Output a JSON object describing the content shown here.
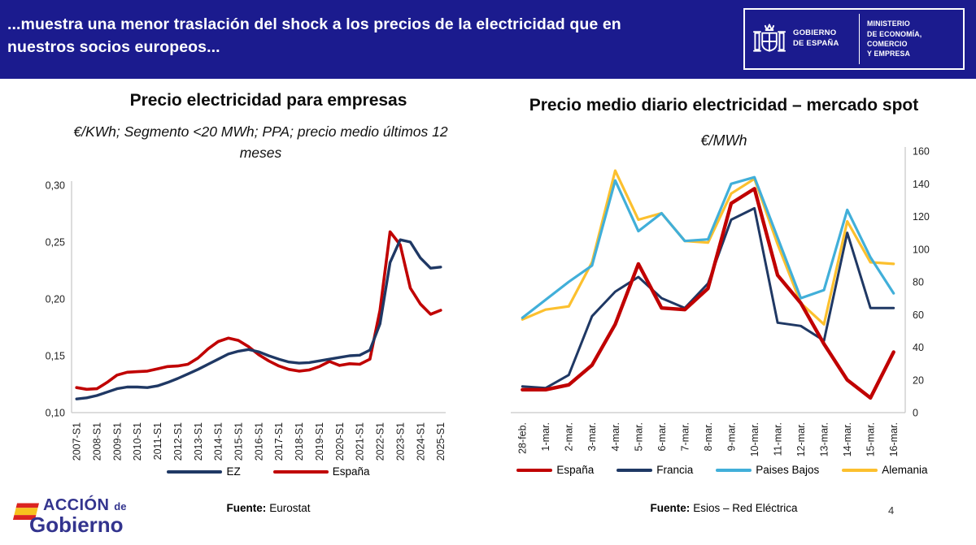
{
  "colors": {
    "header_bg": "#1b1b8e",
    "axis": "#c6c6c6",
    "accion_navy": "#33348E",
    "flag_red": "#DB2420",
    "flag_yellow": "#F7C21E",
    "ez_navy": "#1F3864",
    "spain_red": "#C00000",
    "netherlands_blue": "#41AFD9",
    "germany_yellow": "#FCC02E"
  },
  "header": {
    "title_line1": "...muestra una menor traslación del shock a los precios de la electricidad que en",
    "title_line2": "nuestros socios europeos...",
    "logo": {
      "gov_line1": "GOBIERNO",
      "gov_line2": "DE ESPAÑA",
      "ministry_line1": "MINISTERIO",
      "ministry_line2": "DE ECONOMÍA, COMERCIO",
      "ministry_line3": "Y EMPRESA"
    }
  },
  "chart_data": [
    {
      "id": "empresas",
      "type": "line",
      "title": "Precio electricidad para empresas",
      "subtitle": "€/KWh; Segmento <20 MWh; PPA; precio medio últimos 12 meses",
      "grid": false,
      "legend_position": "bottom",
      "y_axis_side": "left",
      "ylim": [
        0.1,
        0.3
      ],
      "y_ticks": [
        {
          "value": 0.1,
          "label": "0,10"
        },
        {
          "value": 0.15,
          "label": "0,15"
        },
        {
          "value": 0.2,
          "label": "0,20"
        },
        {
          "value": 0.25,
          "label": "0,25"
        },
        {
          "value": 0.3,
          "label": "0,30"
        }
      ],
      "x_note": "semi-annual points 2007-S1 to 2025-S1, labels shown every second point",
      "x_tick_step": 2,
      "x_tick_labels": [
        "2007-S1",
        "2008-S1",
        "2009-S1",
        "2010-S1",
        "2011-S1",
        "2012-S1",
        "2013-S1",
        "2014-S1",
        "2015-S1",
        "2016-S1",
        "2017-S1",
        "2018-S1",
        "2019-S1",
        "2020-S1",
        "2021-S1",
        "2022-S1",
        "2023-S1",
        "2024-S1",
        "2025-S1"
      ],
      "series": [
        {
          "name": "EZ",
          "color": "#1F3864",
          "width": 3.4,
          "values": [
            0.112,
            0.113,
            0.115,
            0.118,
            0.121,
            0.1225,
            0.1225,
            0.122,
            0.1235,
            0.1265,
            0.13,
            0.134,
            0.138,
            0.1425,
            0.147,
            0.1515,
            0.154,
            0.1555,
            0.1535,
            0.15,
            0.147,
            0.1445,
            0.1435,
            0.144,
            0.1455,
            0.147,
            0.1485,
            0.15,
            0.1505,
            0.155,
            0.178,
            0.232,
            0.252,
            0.25,
            0.236,
            0.227,
            0.228
          ]
        },
        {
          "name": "España",
          "color": "#C00000",
          "width": 3.6,
          "values": [
            0.122,
            0.1205,
            0.121,
            0.1265,
            0.133,
            0.1355,
            0.136,
            0.1365,
            0.1385,
            0.1405,
            0.141,
            0.1425,
            0.148,
            0.156,
            0.1625,
            0.1655,
            0.1635,
            0.158,
            0.151,
            0.1455,
            0.141,
            0.138,
            0.1365,
            0.1375,
            0.1405,
            0.145,
            0.1415,
            0.143,
            0.1425,
            0.147,
            0.19,
            0.259,
            0.2475,
            0.2095,
            0.1955,
            0.1865,
            0.19
          ]
        }
      ],
      "fuente_label": "Fuente:",
      "fuente_text": "Eurostat"
    },
    {
      "id": "spot",
      "type": "line",
      "title": "Precio medio diario electricidad – mercado spot",
      "subtitle": "€/MWh",
      "grid": false,
      "legend_position": "bottom",
      "y_axis_side": "right",
      "ylim": [
        0,
        160
      ],
      "y_ticks": [
        {
          "value": 0,
          "label": "0"
        },
        {
          "value": 20,
          "label": "20"
        },
        {
          "value": 40,
          "label": "40"
        },
        {
          "value": 60,
          "label": "60"
        },
        {
          "value": 80,
          "label": "80"
        },
        {
          "value": 100,
          "label": "100"
        },
        {
          "value": 120,
          "label": "120"
        },
        {
          "value": 140,
          "label": "140"
        },
        {
          "value": 160,
          "label": "160"
        }
      ],
      "x_tick_step": 1,
      "x_tick_labels": [
        "28-feb.",
        "1-mar.",
        "2-mar.",
        "3-mar.",
        "4-mar.",
        "5-mar.",
        "6-mar.",
        "7-mar.",
        "8-mar.",
        "9-mar.",
        "10-mar.",
        "11-mar.",
        "12-mar.",
        "13-mar.",
        "14-mar.",
        "15-mar.",
        "16-mar."
      ],
      "series": [
        {
          "name": "España",
          "color": "#C00000",
          "width": 4.4,
          "values": [
            14,
            14,
            17,
            29,
            54,
            91,
            64,
            63,
            76,
            128,
            137,
            84,
            67,
            42,
            20,
            9,
            37
          ]
        },
        {
          "name": "Francia",
          "color": "#1F3864",
          "width": 3.0,
          "values": [
            16,
            15,
            23,
            59,
            74,
            83,
            70,
            64,
            79,
            118,
            125,
            55,
            53,
            44,
            110,
            64,
            64
          ]
        },
        {
          "name": "Paises Bajos",
          "color": "#41AFD9",
          "width": 3.2,
          "values": [
            58,
            69,
            80,
            90,
            142,
            111,
            122,
            105,
            106,
            140,
            144,
            107,
            70,
            75,
            124,
            95,
            73
          ]
        },
        {
          "name": "Alemania",
          "color": "#FCC02E",
          "width": 3.2,
          "values": [
            57,
            63,
            65,
            92,
            148,
            118,
            122,
            105,
            104,
            134,
            143,
            103,
            67,
            54,
            117,
            92,
            91
          ]
        }
      ],
      "fuente_label": "Fuente:",
      "fuente_text": "Esios – Red Eléctrica"
    }
  ],
  "footer": {
    "accion_line1_main": "ACCIÓN",
    "accion_line1_small": "de",
    "accion_line2": "Gobierno",
    "page_number": "4"
  }
}
